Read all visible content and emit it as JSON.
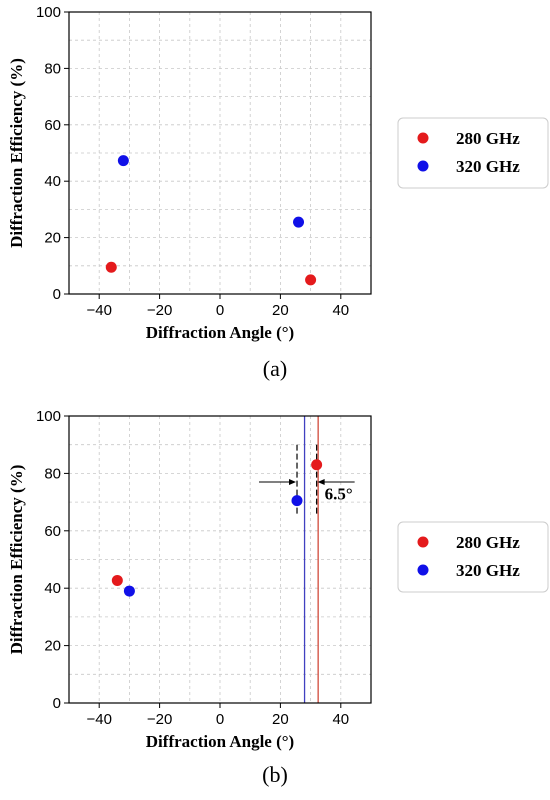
{
  "chart_data": [
    {
      "type": "scatter",
      "caption": "(a)",
      "xlabel": "Diffraction Angle (°)",
      "ylabel": "Diffraction Efficiency (%)",
      "xlim": [
        -50,
        50
      ],
      "ylim": [
        0,
        100
      ],
      "xticks": [
        -40,
        -20,
        0,
        20,
        40
      ],
      "yticks": [
        0,
        20,
        40,
        60,
        80,
        100
      ],
      "grid": true,
      "legend_position": "right",
      "series": [
        {
          "name": "280 GHz",
          "color": "#e41a1c",
          "points": [
            {
              "x": -36,
              "y": 9.5
            },
            {
              "x": 30,
              "y": 5
            }
          ]
        },
        {
          "name": "320 GHz",
          "color": "#1010e8",
          "points": [
            {
              "x": -32,
              "y": 47.3
            },
            {
              "x": 26,
              "y": 25.5
            }
          ]
        }
      ]
    },
    {
      "type": "scatter",
      "caption": "(b)",
      "xlabel": "Diffraction Angle (°)",
      "ylabel": "Diffraction Efficiency (%)",
      "xlim": [
        -50,
        50
      ],
      "ylim": [
        0,
        100
      ],
      "xticks": [
        -40,
        -20,
        0,
        20,
        40
      ],
      "yticks": [
        0,
        20,
        40,
        60,
        80,
        100
      ],
      "grid": true,
      "legend_position": "right",
      "series": [
        {
          "name": "280 GHz",
          "color": "#e41a1c",
          "points": [
            {
              "x": -34,
              "y": 42.7
            },
            {
              "x": 32,
              "y": 83
            }
          ]
        },
        {
          "name": "320 GHz",
          "color": "#1010e8",
          "points": [
            {
              "x": -30,
              "y": 39
            },
            {
              "x": 25.5,
              "y": 70.5
            }
          ]
        }
      ],
      "vlines": [
        {
          "x": 28,
          "color": "#4040c0"
        },
        {
          "x": 32.5,
          "color": "#d04a3a"
        }
      ],
      "dashed_lines": [
        {
          "x": 25.5,
          "y1": 66,
          "y2": 90
        },
        {
          "x": 32,
          "y1": 66,
          "y2": 90
        }
      ],
      "annotation": {
        "text": "6.5°",
        "x": 34,
        "y": 73
      }
    }
  ]
}
